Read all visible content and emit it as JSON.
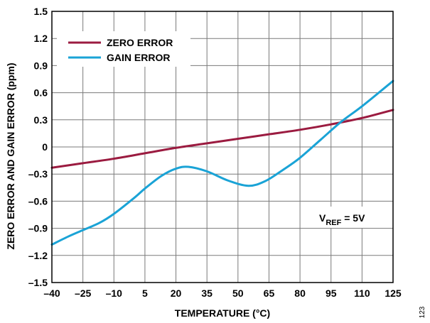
{
  "chart_data": {
    "type": "line",
    "xlabel": "TEMPERATURE (°C)",
    "ylabel": "ZERO ERROR AND GAIN ERROR (ppm)",
    "x_ticks": [
      -40,
      -25,
      -10,
      5,
      20,
      35,
      50,
      65,
      80,
      95,
      110,
      125
    ],
    "y_ticks": [
      -1.5,
      -1.2,
      -0.9,
      -0.6,
      -0.3,
      0,
      0.3,
      0.6,
      0.9,
      1.2,
      1.5
    ],
    "x_tick_labels": [
      "–40",
      "–25",
      "–10",
      "5",
      "20",
      "35",
      "50",
      "65",
      "80",
      "95",
      "110",
      "125"
    ],
    "y_tick_labels": [
      "–1.5",
      "–1.2",
      "–0.9",
      "–0.6",
      "–0.3",
      "0",
      "0.3",
      "0.6",
      "0.9",
      "1.2",
      "1.5"
    ],
    "xlim": [
      -40,
      125
    ],
    "ylim": [
      -1.5,
      1.5
    ],
    "grid": true,
    "legend_position": "top-left",
    "series": [
      {
        "name": "ZERO ERROR",
        "color": "#9b1b40",
        "x": [
          -40,
          -25,
          -10,
          5,
          20,
          35,
          50,
          65,
          80,
          95,
          110,
          125
        ],
        "values": [
          -0.23,
          -0.18,
          -0.13,
          -0.07,
          -0.01,
          0.04,
          0.09,
          0.14,
          0.19,
          0.25,
          0.32,
          0.41
        ]
      },
      {
        "name": "GAIN ERROR",
        "color": "#1aa3d6",
        "x": [
          -40,
          -32,
          -25,
          -17,
          -10,
          0,
          5,
          13,
          20,
          26,
          35,
          45,
          55,
          63,
          72,
          80,
          90,
          100,
          110,
          125
        ],
        "values": [
          -1.08,
          -0.99,
          -0.92,
          -0.84,
          -0.74,
          -0.56,
          -0.46,
          -0.32,
          -0.24,
          -0.22,
          -0.27,
          -0.37,
          -0.43,
          -0.38,
          -0.25,
          -0.12,
          0.08,
          0.28,
          0.45,
          0.73
        ]
      }
    ],
    "annotations": [
      {
        "text_main": "V",
        "text_sub": "REF",
        "text_tail": " = 5V"
      }
    ],
    "figure_id": "123"
  }
}
